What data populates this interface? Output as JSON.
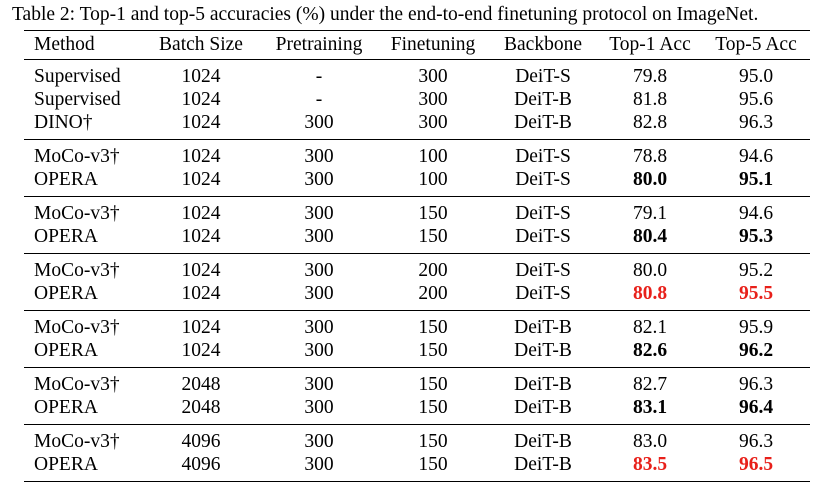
{
  "caption": "Table 2: Top-1 and top-5 accuracies (%) under the end-to-end finetuning protocol on ImageNet.",
  "headers": [
    "Method",
    "Batch Size",
    "Pretraining",
    "Finetuning",
    "Backbone",
    "Top-1 Acc",
    "Top-5 Acc"
  ],
  "groups": [
    {
      "rows": [
        {
          "method": "Supervised",
          "batch": "1024",
          "pretrain": "-",
          "finetune": "300",
          "backbone": "DeiT-S",
          "top1": "79.8",
          "top5": "95.0",
          "top1_style": "normal",
          "top5_style": "normal"
        },
        {
          "method": "Supervised",
          "batch": "1024",
          "pretrain": "-",
          "finetune": "300",
          "backbone": "DeiT-B",
          "top1": "81.8",
          "top5": "95.6",
          "top1_style": "normal",
          "top5_style": "normal"
        },
        {
          "method": "DINO†",
          "batch": "1024",
          "pretrain": "300",
          "finetune": "300",
          "backbone": "DeiT-B",
          "top1": "82.8",
          "top5": "96.3",
          "top1_style": "normal",
          "top5_style": "normal"
        }
      ]
    },
    {
      "rows": [
        {
          "method": "MoCo-v3†",
          "batch": "1024",
          "pretrain": "300",
          "finetune": "100",
          "backbone": "DeiT-S",
          "top1": "78.8",
          "top5": "94.6",
          "top1_style": "normal",
          "top5_style": "normal"
        },
        {
          "method": "OPERA",
          "batch": "1024",
          "pretrain": "300",
          "finetune": "100",
          "backbone": "DeiT-S",
          "top1": "80.0",
          "top5": "95.1",
          "top1_style": "bold",
          "top5_style": "bold"
        }
      ]
    },
    {
      "rows": [
        {
          "method": "MoCo-v3†",
          "batch": "1024",
          "pretrain": "300",
          "finetune": "150",
          "backbone": "DeiT-S",
          "top1": "79.1",
          "top5": "94.6",
          "top1_style": "normal",
          "top5_style": "normal"
        },
        {
          "method": "OPERA",
          "batch": "1024",
          "pretrain": "300",
          "finetune": "150",
          "backbone": "DeiT-S",
          "top1": "80.4",
          "top5": "95.3",
          "top1_style": "bold",
          "top5_style": "bold"
        }
      ]
    },
    {
      "rows": [
        {
          "method": "MoCo-v3†",
          "batch": "1024",
          "pretrain": "300",
          "finetune": "200",
          "backbone": "DeiT-S",
          "top1": "80.0",
          "top5": "95.2",
          "top1_style": "normal",
          "top5_style": "normal"
        },
        {
          "method": "OPERA",
          "batch": "1024",
          "pretrain": "300",
          "finetune": "200",
          "backbone": "DeiT-S",
          "top1": "80.8",
          "top5": "95.5",
          "top1_style": "red",
          "top5_style": "red"
        }
      ]
    },
    {
      "rows": [
        {
          "method": "MoCo-v3†",
          "batch": "1024",
          "pretrain": "300",
          "finetune": "150",
          "backbone": "DeiT-B",
          "top1": "82.1",
          "top5": "95.9",
          "top1_style": "normal",
          "top5_style": "normal"
        },
        {
          "method": "OPERA",
          "batch": "1024",
          "pretrain": "300",
          "finetune": "150",
          "backbone": "DeiT-B",
          "top1": "82.6",
          "top5": "96.2",
          "top1_style": "bold",
          "top5_style": "bold"
        }
      ]
    },
    {
      "rows": [
        {
          "method": "MoCo-v3†",
          "batch": "2048",
          "pretrain": "300",
          "finetune": "150",
          "backbone": "DeiT-B",
          "top1": "82.7",
          "top5": "96.3",
          "top1_style": "normal",
          "top5_style": "normal"
        },
        {
          "method": "OPERA",
          "batch": "2048",
          "pretrain": "300",
          "finetune": "150",
          "backbone": "DeiT-B",
          "top1": "83.1",
          "top5": "96.4",
          "top1_style": "bold",
          "top5_style": "bold"
        }
      ]
    },
    {
      "rows": [
        {
          "method": "MoCo-v3†",
          "batch": "4096",
          "pretrain": "300",
          "finetune": "150",
          "backbone": "DeiT-B",
          "top1": "83.0",
          "top5": "96.3",
          "top1_style": "normal",
          "top5_style": "normal"
        },
        {
          "method": "OPERA",
          "batch": "4096",
          "pretrain": "300",
          "finetune": "150",
          "backbone": "DeiT-B",
          "top1": "83.5",
          "top5": "96.5",
          "top1_style": "red",
          "top5_style": "red"
        }
      ]
    }
  ],
  "colors": {
    "best_highlight": "#e8201a",
    "text": "#000000"
  }
}
